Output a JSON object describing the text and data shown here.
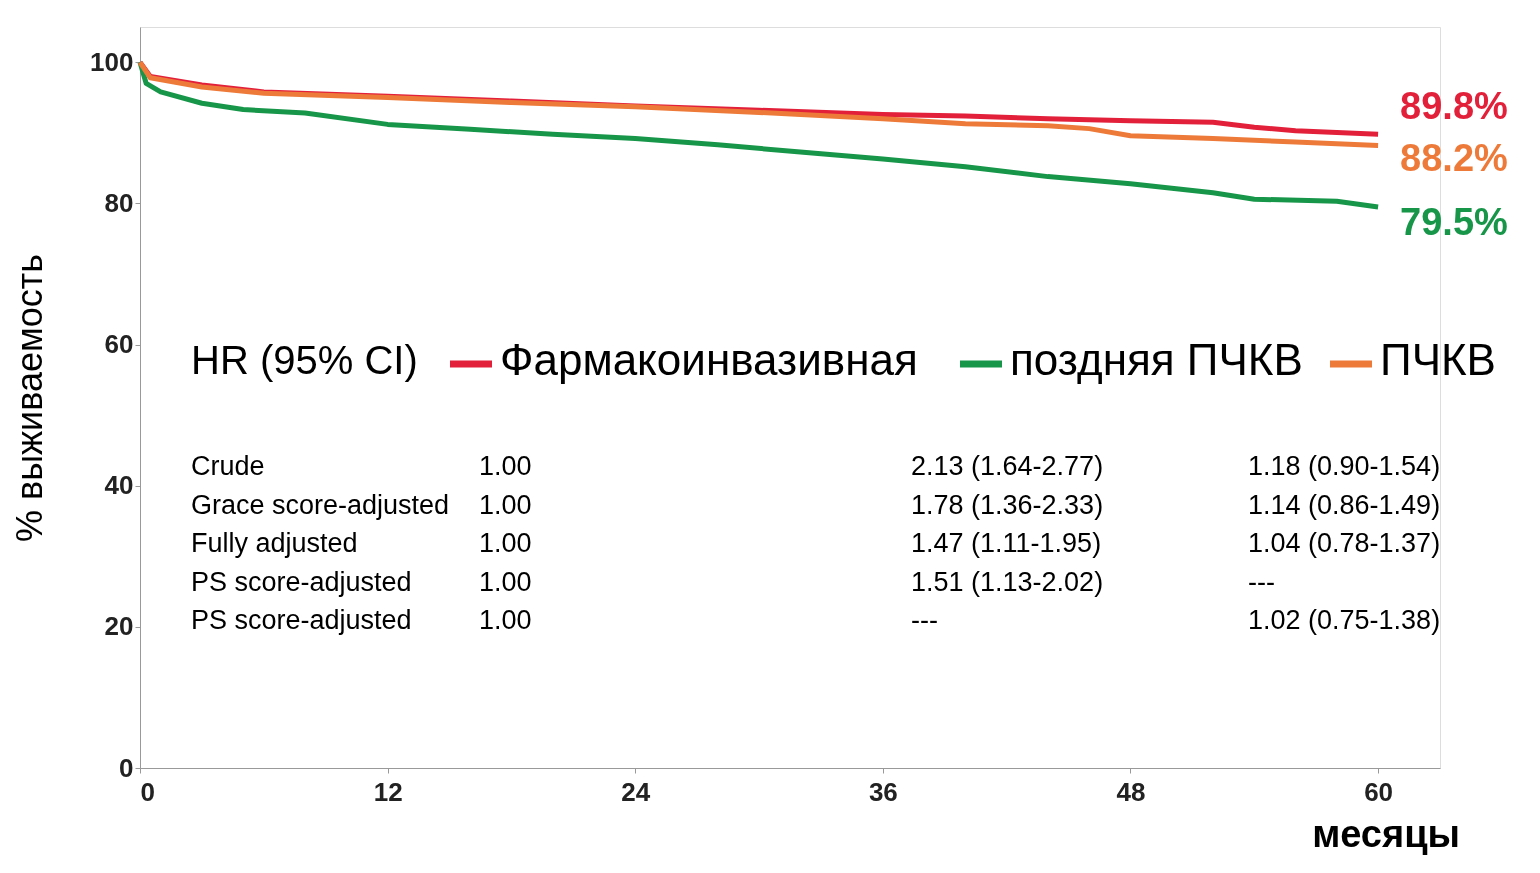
{
  "chart_data": {
    "type": "line",
    "xlabel": "месяцы",
    "ylabel": "% выживаемость",
    "xlim": [
      0,
      63
    ],
    "xticks": [
      0,
      12,
      24,
      36,
      48,
      60
    ],
    "ylim": [
      0,
      105
    ],
    "yticks": [
      0,
      20,
      40,
      60,
      80,
      100
    ],
    "grid": false,
    "legend": "center",
    "marker": "none",
    "line_style": "solid",
    "series": [
      {
        "name": "Фармакоинвазивная",
        "color": "#e3203a",
        "x": [
          0,
          0.5,
          3,
          6,
          12,
          18,
          24,
          30,
          36,
          40,
          44,
          48,
          52,
          54,
          56,
          60
        ],
        "values": [
          100,
          98,
          96.8,
          95.8,
          95.2,
          94.5,
          93.8,
          93.2,
          92.6,
          92.4,
          92,
          91.7,
          91.5,
          90.8,
          90.3,
          89.8
        ],
        "value_labels": [
          null,
          null,
          null,
          null,
          null,
          null,
          null,
          null,
          null,
          null,
          null,
          null,
          null,
          null,
          null,
          "89.8%"
        ]
      },
      {
        "name": "поздняя ПЧКВ",
        "color": "#17964a",
        "x": [
          0,
          0.3,
          1,
          3,
          5,
          8,
          12,
          16,
          20,
          24,
          28,
          32,
          36,
          40,
          44,
          48,
          52,
          54,
          58,
          60
        ],
        "values": [
          100,
          97,
          95.8,
          94.2,
          93.3,
          92.8,
          91.2,
          90.5,
          89.8,
          89.2,
          88.3,
          87.3,
          86.3,
          85.2,
          83.8,
          82.8,
          81.5,
          80.6,
          80.3,
          79.5
        ],
        "value_labels": [
          null,
          null,
          null,
          null,
          null,
          null,
          null,
          null,
          null,
          null,
          null,
          null,
          null,
          null,
          null,
          null,
          null,
          null,
          null,
          "79.5%"
        ]
      },
      {
        "name": "ПЧКВ",
        "color": "#ee7a3a",
        "x": [
          0,
          0.5,
          3,
          6,
          12,
          18,
          24,
          30,
          36,
          40,
          44,
          46,
          48,
          52,
          56,
          60
        ],
        "values": [
          100,
          97.8,
          96.5,
          95.6,
          95,
          94.3,
          93.7,
          92.9,
          92,
          91.3,
          91,
          90.6,
          89.6,
          89.2,
          88.7,
          88.2
        ],
        "value_labels": [
          null,
          null,
          null,
          null,
          null,
          null,
          null,
          null,
          null,
          null,
          null,
          null,
          null,
          null,
          null,
          "88.2%"
        ]
      }
    ],
    "annotations": [
      "HR (95% CI)",
      "Crude",
      "1.00",
      "2.13 (1.64-2.77)",
      "1.18 (0.90-1.54)",
      "Grace score-adjusted",
      "1.00",
      "1.78 (1.36-2.33)",
      "1.14 (0.86-1.49)",
      "Fully adjusted",
      "1.00",
      "1.47 (1.11-1.95)",
      "1.04 (0.78-1.37)",
      "PS score-adjusted",
      "1.00",
      "1.51 (1.13-2.02)",
      "---",
      "PS score-adjusted",
      "1.00",
      "---",
      "1.02 (0.75-1.38)"
    ]
  }
}
